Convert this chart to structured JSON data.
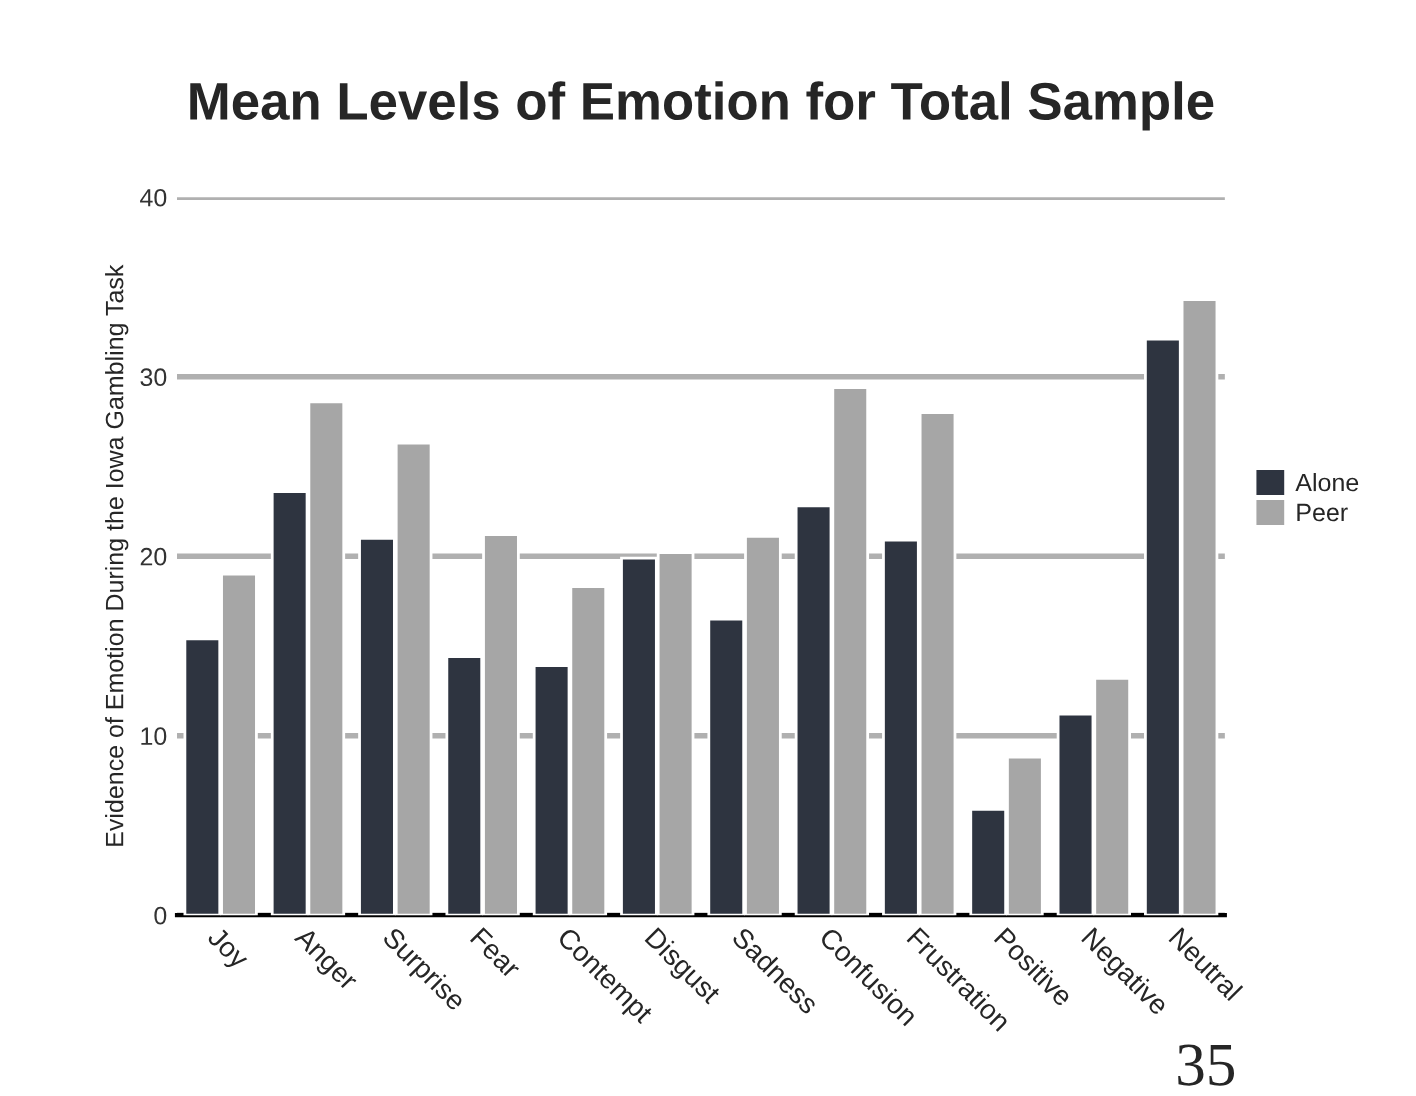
{
  "chart_data": {
    "type": "bar",
    "title": "Mean Levels of Emotion for Total Sample",
    "ylabel": "Evidence of Emotion During the Iowa Gambling Task",
    "categories": [
      "Joy",
      "Anger",
      "Surprise",
      "Fear",
      "Contempt",
      "Disgust",
      "Sadness",
      "Confusion",
      "Frustration",
      "Positive",
      "Negative",
      "Neutral"
    ],
    "series": [
      {
        "name": "Alone",
        "color": "#2e3440",
        "values": [
          15.4,
          23.6,
          21.0,
          14.4,
          13.9,
          19.9,
          16.5,
          22.8,
          20.9,
          5.9,
          11.2,
          32.1
        ]
      },
      {
        "name": "Peer",
        "color": "#a6a6a6",
        "values": [
          19.0,
          28.6,
          26.3,
          21.2,
          18.3,
          20.2,
          21.1,
          29.4,
          28.0,
          8.8,
          13.2,
          34.3
        ]
      }
    ],
    "ylim": [
      0,
      40
    ],
    "yticks": [
      0,
      10,
      20,
      30,
      40
    ],
    "grid": "y",
    "legend": "right",
    "annotations": [
      "35"
    ]
  }
}
